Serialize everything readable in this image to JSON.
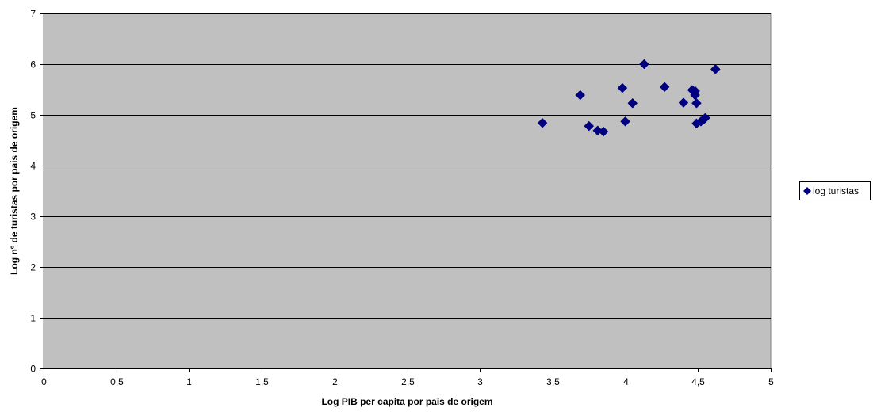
{
  "chart_data": {
    "type": "scatter",
    "xlabel": "Log PIB per capita por pais de origem",
    "ylabel": "Log nº de turistas por pais de origem",
    "xlim": [
      0,
      5
    ],
    "ylim": [
      0,
      7
    ],
    "x_ticks": [
      "0",
      "0,5",
      "1",
      "1,5",
      "2",
      "2,5",
      "3",
      "3,5",
      "4",
      "4,5",
      "5"
    ],
    "y_ticks": [
      "0",
      "1",
      "2",
      "3",
      "4",
      "5",
      "6",
      "7"
    ],
    "x_tick_values": [
      0,
      0.5,
      1,
      1.5,
      2,
      2.5,
      3,
      3.5,
      4,
      4.5,
      5
    ],
    "y_tick_values": [
      0,
      1,
      2,
      3,
      4,
      5,
      6,
      7
    ],
    "grid": "horizontal",
    "plot_background": "#C0C0C0",
    "gridline_color": "#000000",
    "legend_position": "right",
    "series": [
      {
        "name": "log turistas",
        "color": "#000080",
        "marker": "diamond",
        "points": [
          {
            "x": 3.43,
            "y": 4.84
          },
          {
            "x": 3.69,
            "y": 5.39
          },
          {
            "x": 3.75,
            "y": 4.78
          },
          {
            "x": 3.81,
            "y": 4.69
          },
          {
            "x": 3.85,
            "y": 4.67
          },
          {
            "x": 3.98,
            "y": 5.53
          },
          {
            "x": 4.0,
            "y": 4.87
          },
          {
            "x": 4.05,
            "y": 5.23
          },
          {
            "x": 4.13,
            "y": 6.0
          },
          {
            "x": 4.27,
            "y": 5.55
          },
          {
            "x": 4.4,
            "y": 5.24
          },
          {
            "x": 4.46,
            "y": 5.49
          },
          {
            "x": 4.48,
            "y": 5.47
          },
          {
            "x": 4.48,
            "y": 5.39
          },
          {
            "x": 4.49,
            "y": 5.23
          },
          {
            "x": 4.49,
            "y": 4.83
          },
          {
            "x": 4.52,
            "y": 4.87
          },
          {
            "x": 4.54,
            "y": 4.91
          },
          {
            "x": 4.55,
            "y": 4.94
          },
          {
            "x": 4.62,
            "y": 5.9
          }
        ]
      }
    ]
  }
}
